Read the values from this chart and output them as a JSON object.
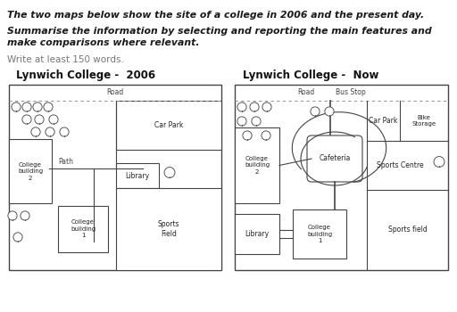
{
  "bg_color": "#ffffff",
  "title_text": "The two maps below show the site of a college in 2006 and the present day.",
  "subtitle_text": "Summarise the information by selecting and reporting the main features and\nmake comparisons where relevant.",
  "instruction_text": "Write at least 150 words.",
  "map1_title": "Lynwich College -  2006",
  "map2_title": "Lynwich College -  Now",
  "line_color": "#444444",
  "dotted_color": "#999999",
  "text_gray": "#888888",
  "label_color": "#333333"
}
